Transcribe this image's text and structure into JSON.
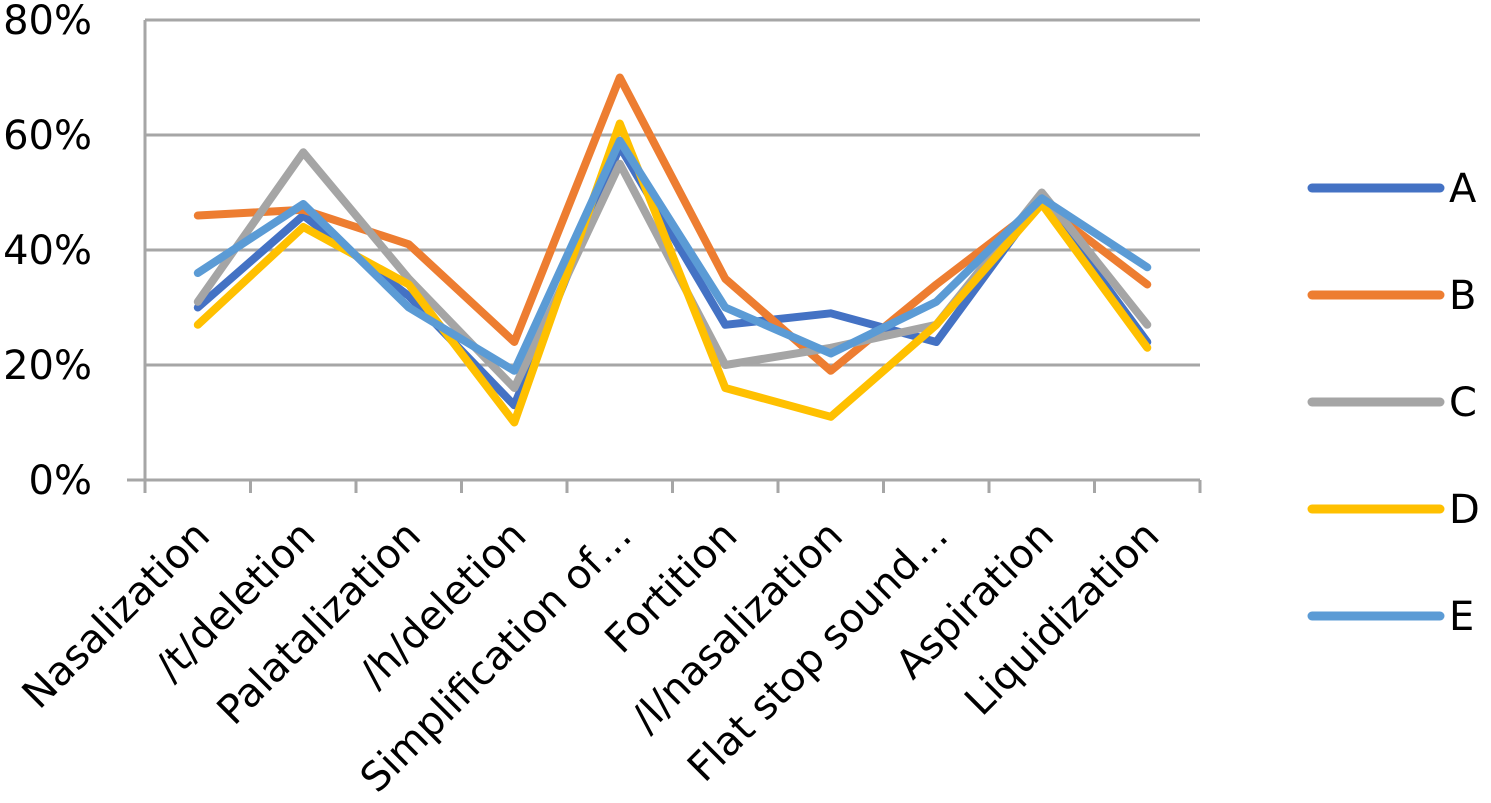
{
  "chart_data": {
    "type": "line",
    "categories": [
      "Nasalization",
      "/t/deletion",
      "Palatalization",
      "/h/deletion",
      "Simplification of…",
      "Fortition",
      "/l/nasalization",
      "Flat stop sound…",
      "Aspiration",
      "Liquidization"
    ],
    "ylim": [
      0,
      80
    ],
    "yticks": [
      0,
      20,
      40,
      60,
      80
    ],
    "ytick_labels": [
      "0%",
      "20%",
      "40%",
      "60%",
      "80%"
    ],
    "grid": true,
    "legend_position": "right",
    "series": [
      {
        "name": "A",
        "color": "#4472c4",
        "values": [
          30,
          46,
          32,
          13,
          58,
          27,
          29,
          24,
          49,
          24
        ]
      },
      {
        "name": "B",
        "color": "#ed7d31",
        "values": [
          46,
          47,
          41,
          24,
          70,
          35,
          19,
          34,
          48,
          34
        ]
      },
      {
        "name": "C",
        "color": "#a5a5a5",
        "values": [
          31,
          57,
          35,
          16,
          55,
          20,
          23,
          27,
          50,
          27
        ]
      },
      {
        "name": "D",
        "color": "#ffc000",
        "values": [
          27,
          44,
          34,
          10,
          62,
          16,
          11,
          27,
          48,
          23
        ]
      },
      {
        "name": "E",
        "color": "#5b9bd5",
        "values": [
          36,
          48,
          30,
          19,
          59,
          30,
          22,
          31,
          49,
          37
        ]
      }
    ]
  }
}
